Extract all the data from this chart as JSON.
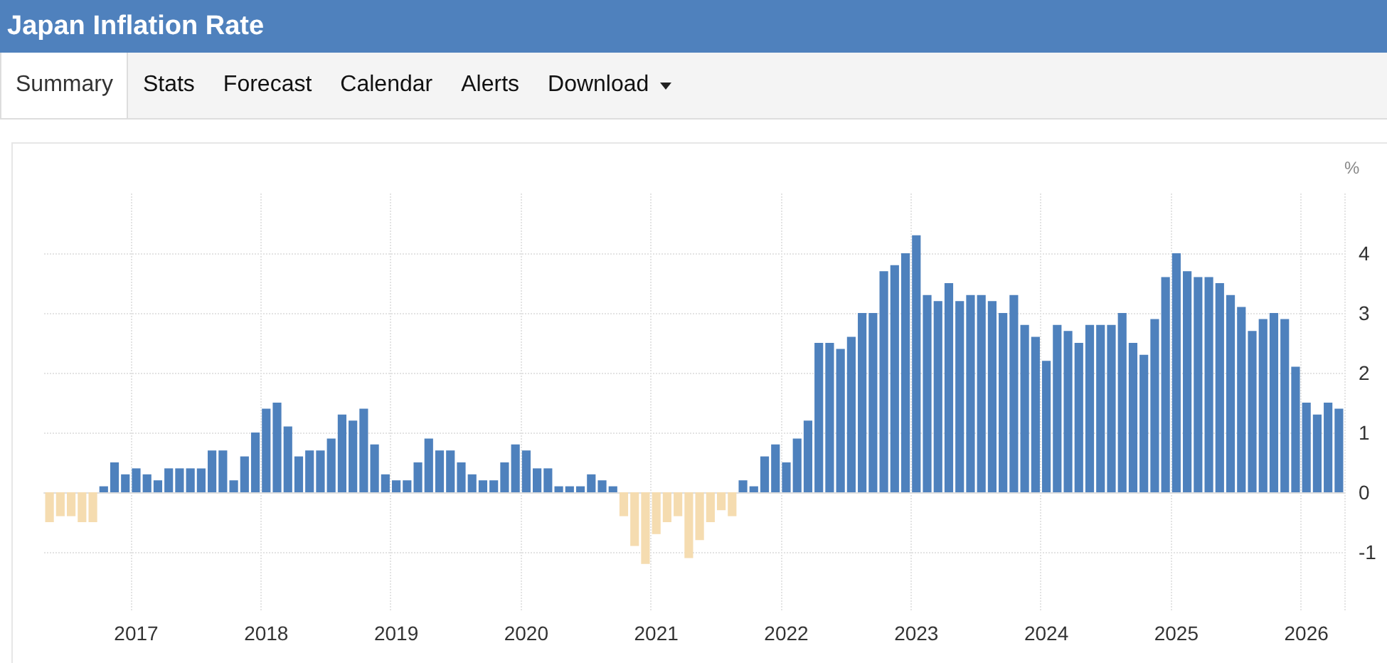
{
  "chart_data": {
    "type": "bar",
    "title": "Japan Inflation Rate",
    "annotations": [
      "Summary",
      "Stats",
      "Forecast",
      "Calendar",
      "Alerts",
      "Download"
    ],
    "ylabel": "%",
    "categories": [
      null,
      null,
      null,
      null,
      null,
      null,
      null,
      null,
      "2017",
      null,
      null,
      null,
      null,
      null,
      null,
      null,
      null,
      null,
      null,
      null,
      "2018",
      null,
      null,
      null,
      null,
      null,
      null,
      null,
      null,
      null,
      null,
      null,
      "2019",
      null,
      null,
      null,
      null,
      null,
      null,
      null,
      null,
      null,
      null,
      null,
      "2020",
      null,
      null,
      null,
      null,
      null,
      null,
      null,
      null,
      null,
      null,
      null,
      "2021",
      null,
      null,
      null,
      null,
      null,
      null,
      null,
      null,
      null,
      null,
      null,
      "2022",
      null,
      null,
      null,
      null,
      null,
      null,
      null,
      null,
      null,
      null,
      null,
      "2023",
      null,
      null,
      null,
      null,
      null,
      null,
      null,
      null,
      null,
      null,
      null,
      "2024",
      null,
      null,
      null,
      null,
      null,
      null,
      null,
      null,
      null,
      null,
      null,
      "2025",
      null,
      null,
      null,
      null,
      null,
      null,
      null,
      null,
      null,
      null,
      null,
      "2026",
      null,
      null,
      null
    ],
    "series": [
      {
        "color": "#4e81bd",
        "values": [
          null,
          null,
          null,
          null,
          null,
          0.1,
          0.5,
          0.3,
          0.4,
          0.3,
          0.2,
          0.4,
          0.4,
          0.4,
          0.4,
          0.7,
          0.7,
          0.2,
          0.6,
          1.0,
          1.4,
          1.5,
          1.1,
          0.6,
          0.7,
          0.7,
          0.9,
          1.3,
          1.2,
          1.4,
          0.8,
          0.3,
          0.2,
          0.2,
          0.5,
          0.9,
          0.7,
          0.7,
          0.5,
          0.3,
          0.2,
          0.2,
          0.5,
          0.8,
          0.7,
          0.4,
          0.4,
          0.1,
          0.1,
          0.1,
          0.3,
          0.2,
          0.1,
          null,
          null,
          null,
          null,
          null,
          null,
          null,
          null,
          null,
          null,
          null,
          0.2,
          0.1,
          0.6,
          0.8,
          0.5,
          0.9,
          1.2,
          2.5,
          2.5,
          2.4,
          2.6,
          3.0,
          3.0,
          3.7,
          3.8,
          4.0,
          4.3,
          3.3,
          3.2,
          3.5,
          3.2,
          3.3,
          3.3,
          3.2,
          3.0,
          3.3,
          2.8,
          2.6,
          2.2,
          2.8,
          2.7,
          2.5,
          2.8,
          2.8,
          2.8,
          3.0,
          2.5,
          2.3,
          2.9,
          3.6,
          4.0,
          3.7,
          3.6,
          3.6,
          3.5,
          3.3,
          3.1,
          2.7,
          2.9,
          3.0,
          2.9,
          2.1,
          1.5,
          1.3,
          1.5,
          1.4
        ]
      },
      {
        "color": "#f5dcb0",
        "values": [
          -0.5,
          -0.4,
          -0.4,
          -0.5,
          -0.5,
          null,
          null,
          null,
          null,
          null,
          null,
          null,
          null,
          null,
          null,
          null,
          null,
          null,
          null,
          null,
          null,
          null,
          null,
          null,
          null,
          null,
          null,
          null,
          null,
          null,
          null,
          null,
          null,
          null,
          null,
          null,
          null,
          null,
          null,
          null,
          null,
          null,
          null,
          null,
          null,
          null,
          null,
          null,
          null,
          null,
          null,
          null,
          null,
          -0.4,
          -0.9,
          -1.2,
          -0.7,
          -0.5,
          -0.4,
          -1.1,
          -0.8,
          -0.5,
          -0.3,
          -0.4,
          null,
          null,
          null,
          null,
          null,
          null,
          null,
          null,
          null,
          null,
          null,
          null,
          null,
          null,
          null,
          null,
          null,
          null,
          null,
          null,
          null,
          null,
          null,
          null,
          null,
          null,
          null,
          null,
          null,
          null,
          null,
          null,
          null,
          null,
          null,
          null,
          null,
          null,
          null,
          null,
          null,
          null,
          null,
          null,
          null,
          null,
          null,
          null,
          null,
          null,
          null,
          null,
          null,
          null,
          null,
          null
        ]
      }
    ],
    "ylim": [
      -2,
      5
    ],
    "yticks": [
      -1,
      0,
      1,
      2,
      3,
      4
    ],
    "grid": true
  }
}
